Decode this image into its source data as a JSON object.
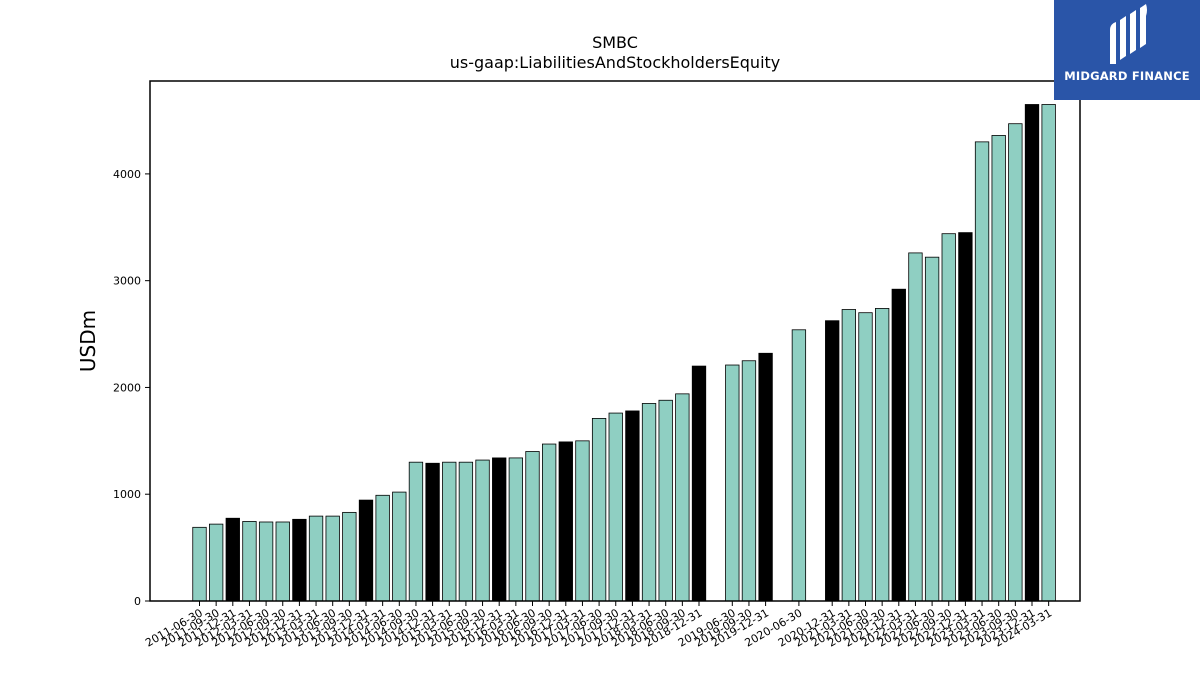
{
  "brand": {
    "name": "MIDGARD FINANCE",
    "bg_color": "#2a55a8"
  },
  "chart_data": {
    "type": "bar",
    "title": "SMBC",
    "subtitle": "us-gaap:LiabilitiesAndStockholdersEquity",
    "ylabel": "USDm",
    "xlabel": "",
    "ylim": [
      0,
      4870
    ],
    "yticks": [
      0,
      1000,
      2000,
      3000,
      4000
    ],
    "grid": false,
    "colors": {
      "quarter": "#8fcfc2",
      "fiscal_year_end": "#000000",
      "edge": "#000000"
    },
    "bars": [
      {
        "date": "2011-06-30",
        "value": 690,
        "highlight": false
      },
      {
        "date": "2011-09-30",
        "value": 720,
        "highlight": false
      },
      {
        "date": "2011-12-31",
        "value": 775,
        "highlight": true
      },
      {
        "date": "2012-03-31",
        "value": 745,
        "highlight": false
      },
      {
        "date": "2012-06-30",
        "value": 740,
        "highlight": false
      },
      {
        "date": "2012-09-30",
        "value": 740,
        "highlight": false
      },
      {
        "date": "2012-12-31",
        "value": 765,
        "highlight": true
      },
      {
        "date": "2013-03-31",
        "value": 795,
        "highlight": false
      },
      {
        "date": "2013-06-30",
        "value": 795,
        "highlight": false
      },
      {
        "date": "2013-09-30",
        "value": 830,
        "highlight": false
      },
      {
        "date": "2013-12-31",
        "value": 945,
        "highlight": true
      },
      {
        "date": "2014-03-31",
        "value": 990,
        "highlight": false
      },
      {
        "date": "2014-06-30",
        "value": 1020,
        "highlight": false
      },
      {
        "date": "2014-09-30",
        "value": 1300,
        "highlight": false
      },
      {
        "date": "2014-12-31",
        "value": 1290,
        "highlight": true
      },
      {
        "date": "2015-03-31",
        "value": 1300,
        "highlight": false
      },
      {
        "date": "2015-06-30",
        "value": 1300,
        "highlight": false
      },
      {
        "date": "2015-09-30",
        "value": 1320,
        "highlight": false
      },
      {
        "date": "2015-12-31",
        "value": 1340,
        "highlight": true
      },
      {
        "date": "2016-03-31",
        "value": 1340,
        "highlight": false
      },
      {
        "date": "2016-06-30",
        "value": 1400,
        "highlight": false
      },
      {
        "date": "2016-09-30",
        "value": 1470,
        "highlight": false
      },
      {
        "date": "2016-12-31",
        "value": 1490,
        "highlight": true
      },
      {
        "date": "2017-03-31",
        "value": 1500,
        "highlight": false
      },
      {
        "date": "2017-06-30",
        "value": 1710,
        "highlight": false
      },
      {
        "date": "2017-09-30",
        "value": 1760,
        "highlight": false
      },
      {
        "date": "2017-12-31",
        "value": 1780,
        "highlight": true
      },
      {
        "date": "2018-03-31",
        "value": 1850,
        "highlight": false
      },
      {
        "date": "2018-06-30",
        "value": 1880,
        "highlight": false
      },
      {
        "date": "2018-09-30",
        "value": 1940,
        "highlight": false
      },
      {
        "date": "2018-12-31",
        "value": 2200,
        "highlight": true
      },
      {
        "date": "2019-06-30",
        "value": 2210,
        "highlight": false
      },
      {
        "date": "2019-09-30",
        "value": 2250,
        "highlight": false
      },
      {
        "date": "2019-12-31",
        "value": 2320,
        "highlight": true
      },
      {
        "date": "2020-06-30",
        "value": 2540,
        "highlight": false
      },
      {
        "date": "2020-12-31",
        "value": 2625,
        "highlight": true
      },
      {
        "date": "2021-03-31",
        "value": 2730,
        "highlight": false
      },
      {
        "date": "2021-06-30",
        "value": 2700,
        "highlight": false
      },
      {
        "date": "2021-09-30",
        "value": 2740,
        "highlight": false
      },
      {
        "date": "2021-12-31",
        "value": 2920,
        "highlight": true
      },
      {
        "date": "2022-03-31",
        "value": 3260,
        "highlight": false
      },
      {
        "date": "2022-06-30",
        "value": 3220,
        "highlight": false
      },
      {
        "date": "2022-09-30",
        "value": 3440,
        "highlight": false
      },
      {
        "date": "2022-12-31",
        "value": 3450,
        "highlight": true
      },
      {
        "date": "2023-03-31",
        "value": 4300,
        "highlight": false
      },
      {
        "date": "2023-06-30",
        "value": 4360,
        "highlight": false
      },
      {
        "date": "2023-09-30",
        "value": 4470,
        "highlight": false
      },
      {
        "date": "2023-12-31",
        "value": 4650,
        "highlight": true
      },
      {
        "date": "2024-03-31",
        "value": 4650,
        "highlight": false
      }
    ]
  }
}
